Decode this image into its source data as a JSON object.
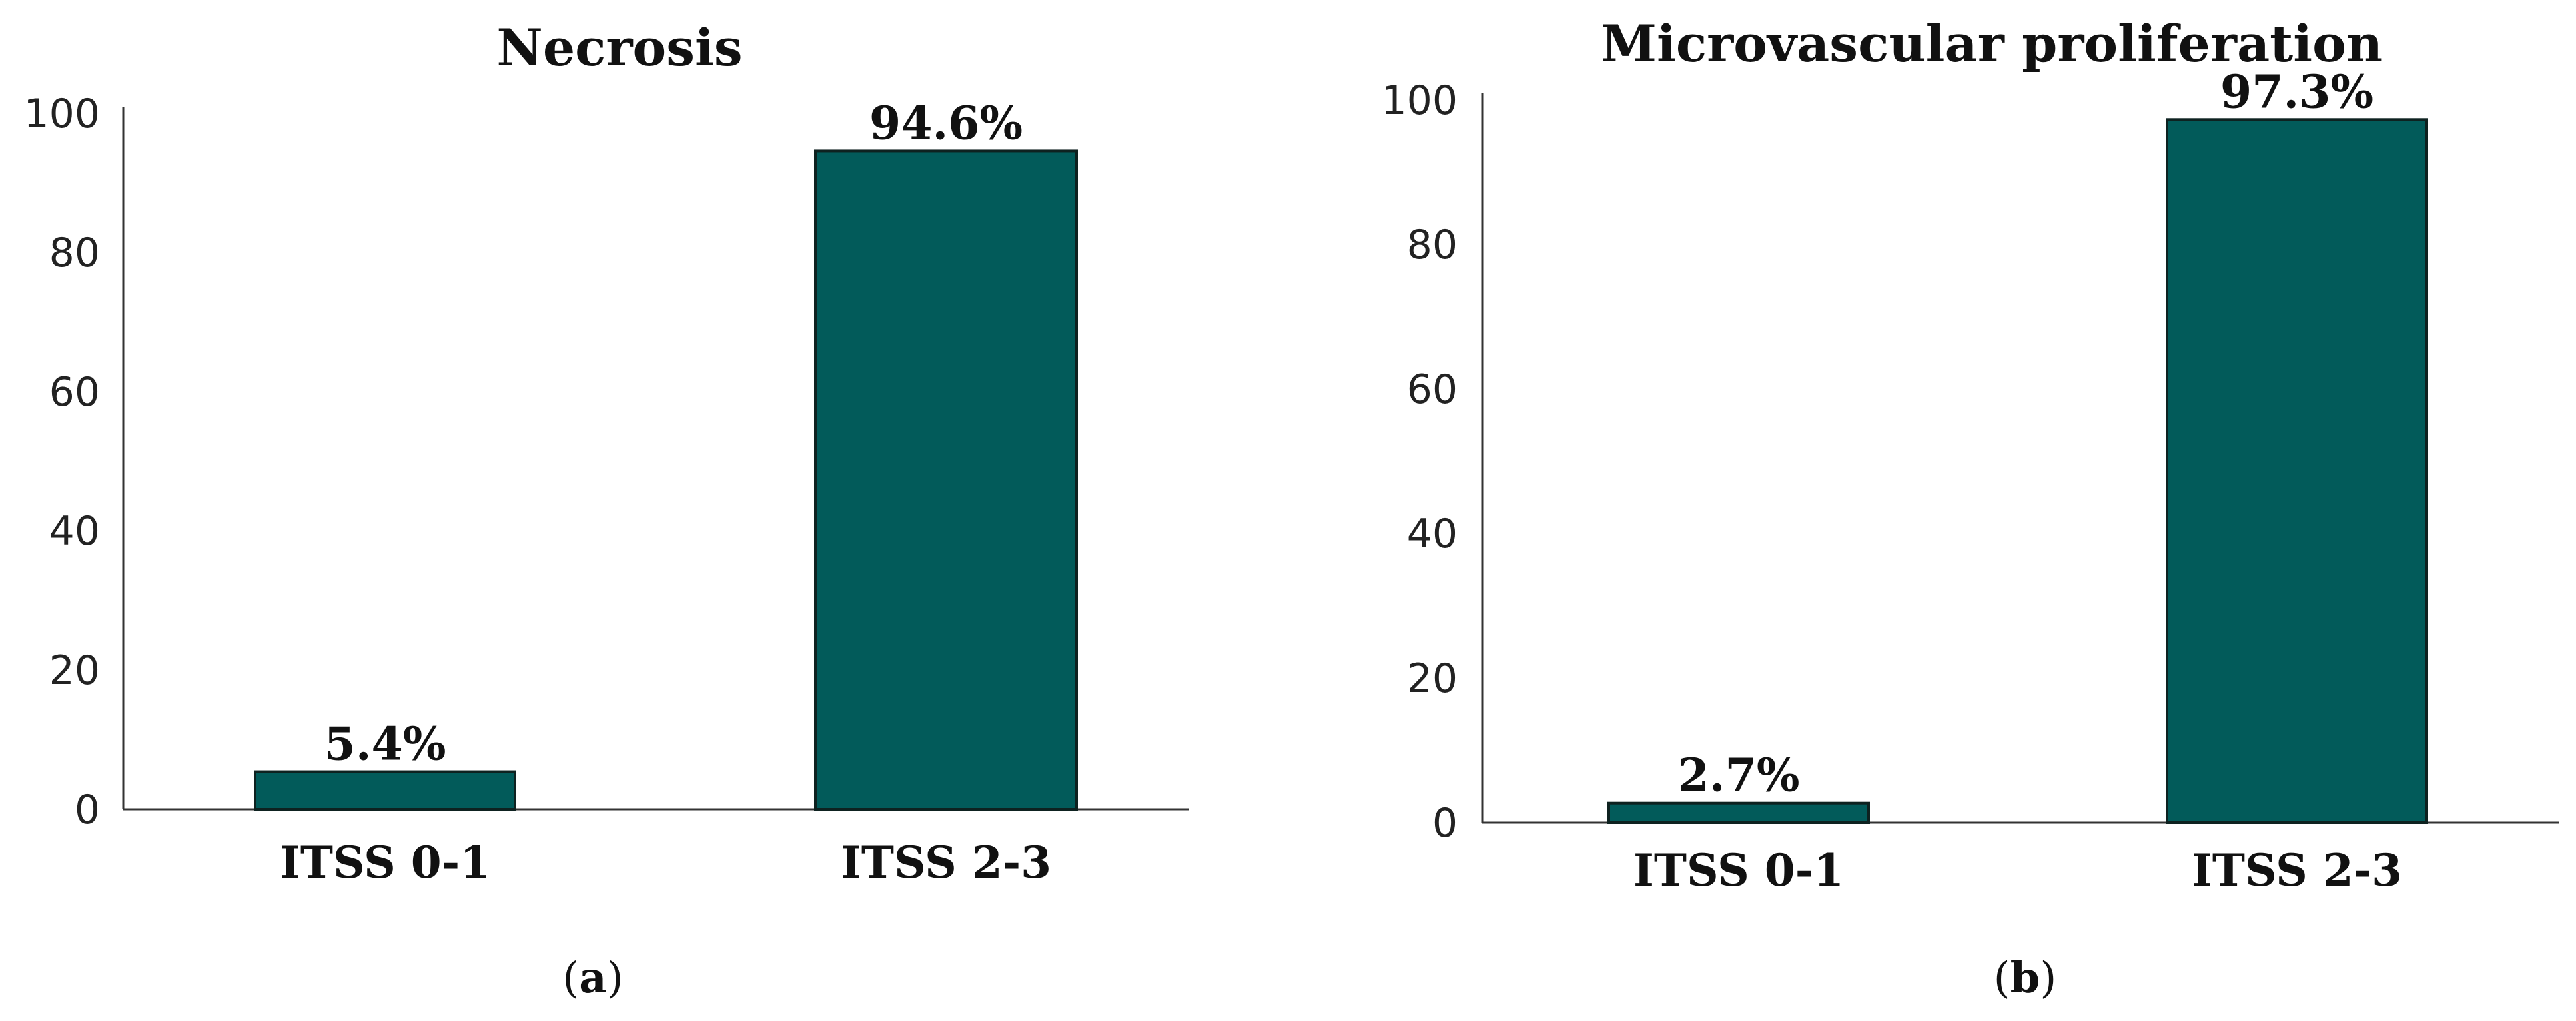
{
  "colors": {
    "bar": "#025b5a",
    "bar_edge": "#0e2220",
    "axis": "#333333"
  },
  "panels": [
    {
      "label_open": "(",
      "label_letter": "a",
      "label_close": ")"
    },
    {
      "label_open": "(",
      "label_letter": "b",
      "label_close": ")"
    }
  ],
  "chart_data": [
    {
      "type": "bar",
      "title": "Necrosis",
      "categories": [
        "ITSS 0-1",
        "ITSS 2-3"
      ],
      "values": [
        5.4,
        94.6
      ],
      "data_labels": [
        "5.4%",
        "94.6%"
      ],
      "ylim": [
        0,
        100
      ],
      "yticks": [
        "0",
        "20",
        "40",
        "60",
        "80",
        "100"
      ],
      "ytick_values": [
        0,
        20,
        40,
        60,
        80,
        100
      ],
      "xlabel": "",
      "ylabel": "",
      "grid": false
    },
    {
      "type": "bar",
      "title": "Microvascular proliferation",
      "categories": [
        "ITSS 0-1",
        "ITSS 2-3"
      ],
      "values": [
        2.7,
        97.3
      ],
      "data_labels": [
        "2.7%",
        "97.3%"
      ],
      "ylim": [
        0,
        100
      ],
      "yticks": [
        "0",
        "20",
        "40",
        "60",
        "80",
        "100"
      ],
      "ytick_values": [
        0,
        20,
        40,
        60,
        80,
        100
      ],
      "xlabel": "",
      "ylabel": "",
      "grid": false
    }
  ]
}
